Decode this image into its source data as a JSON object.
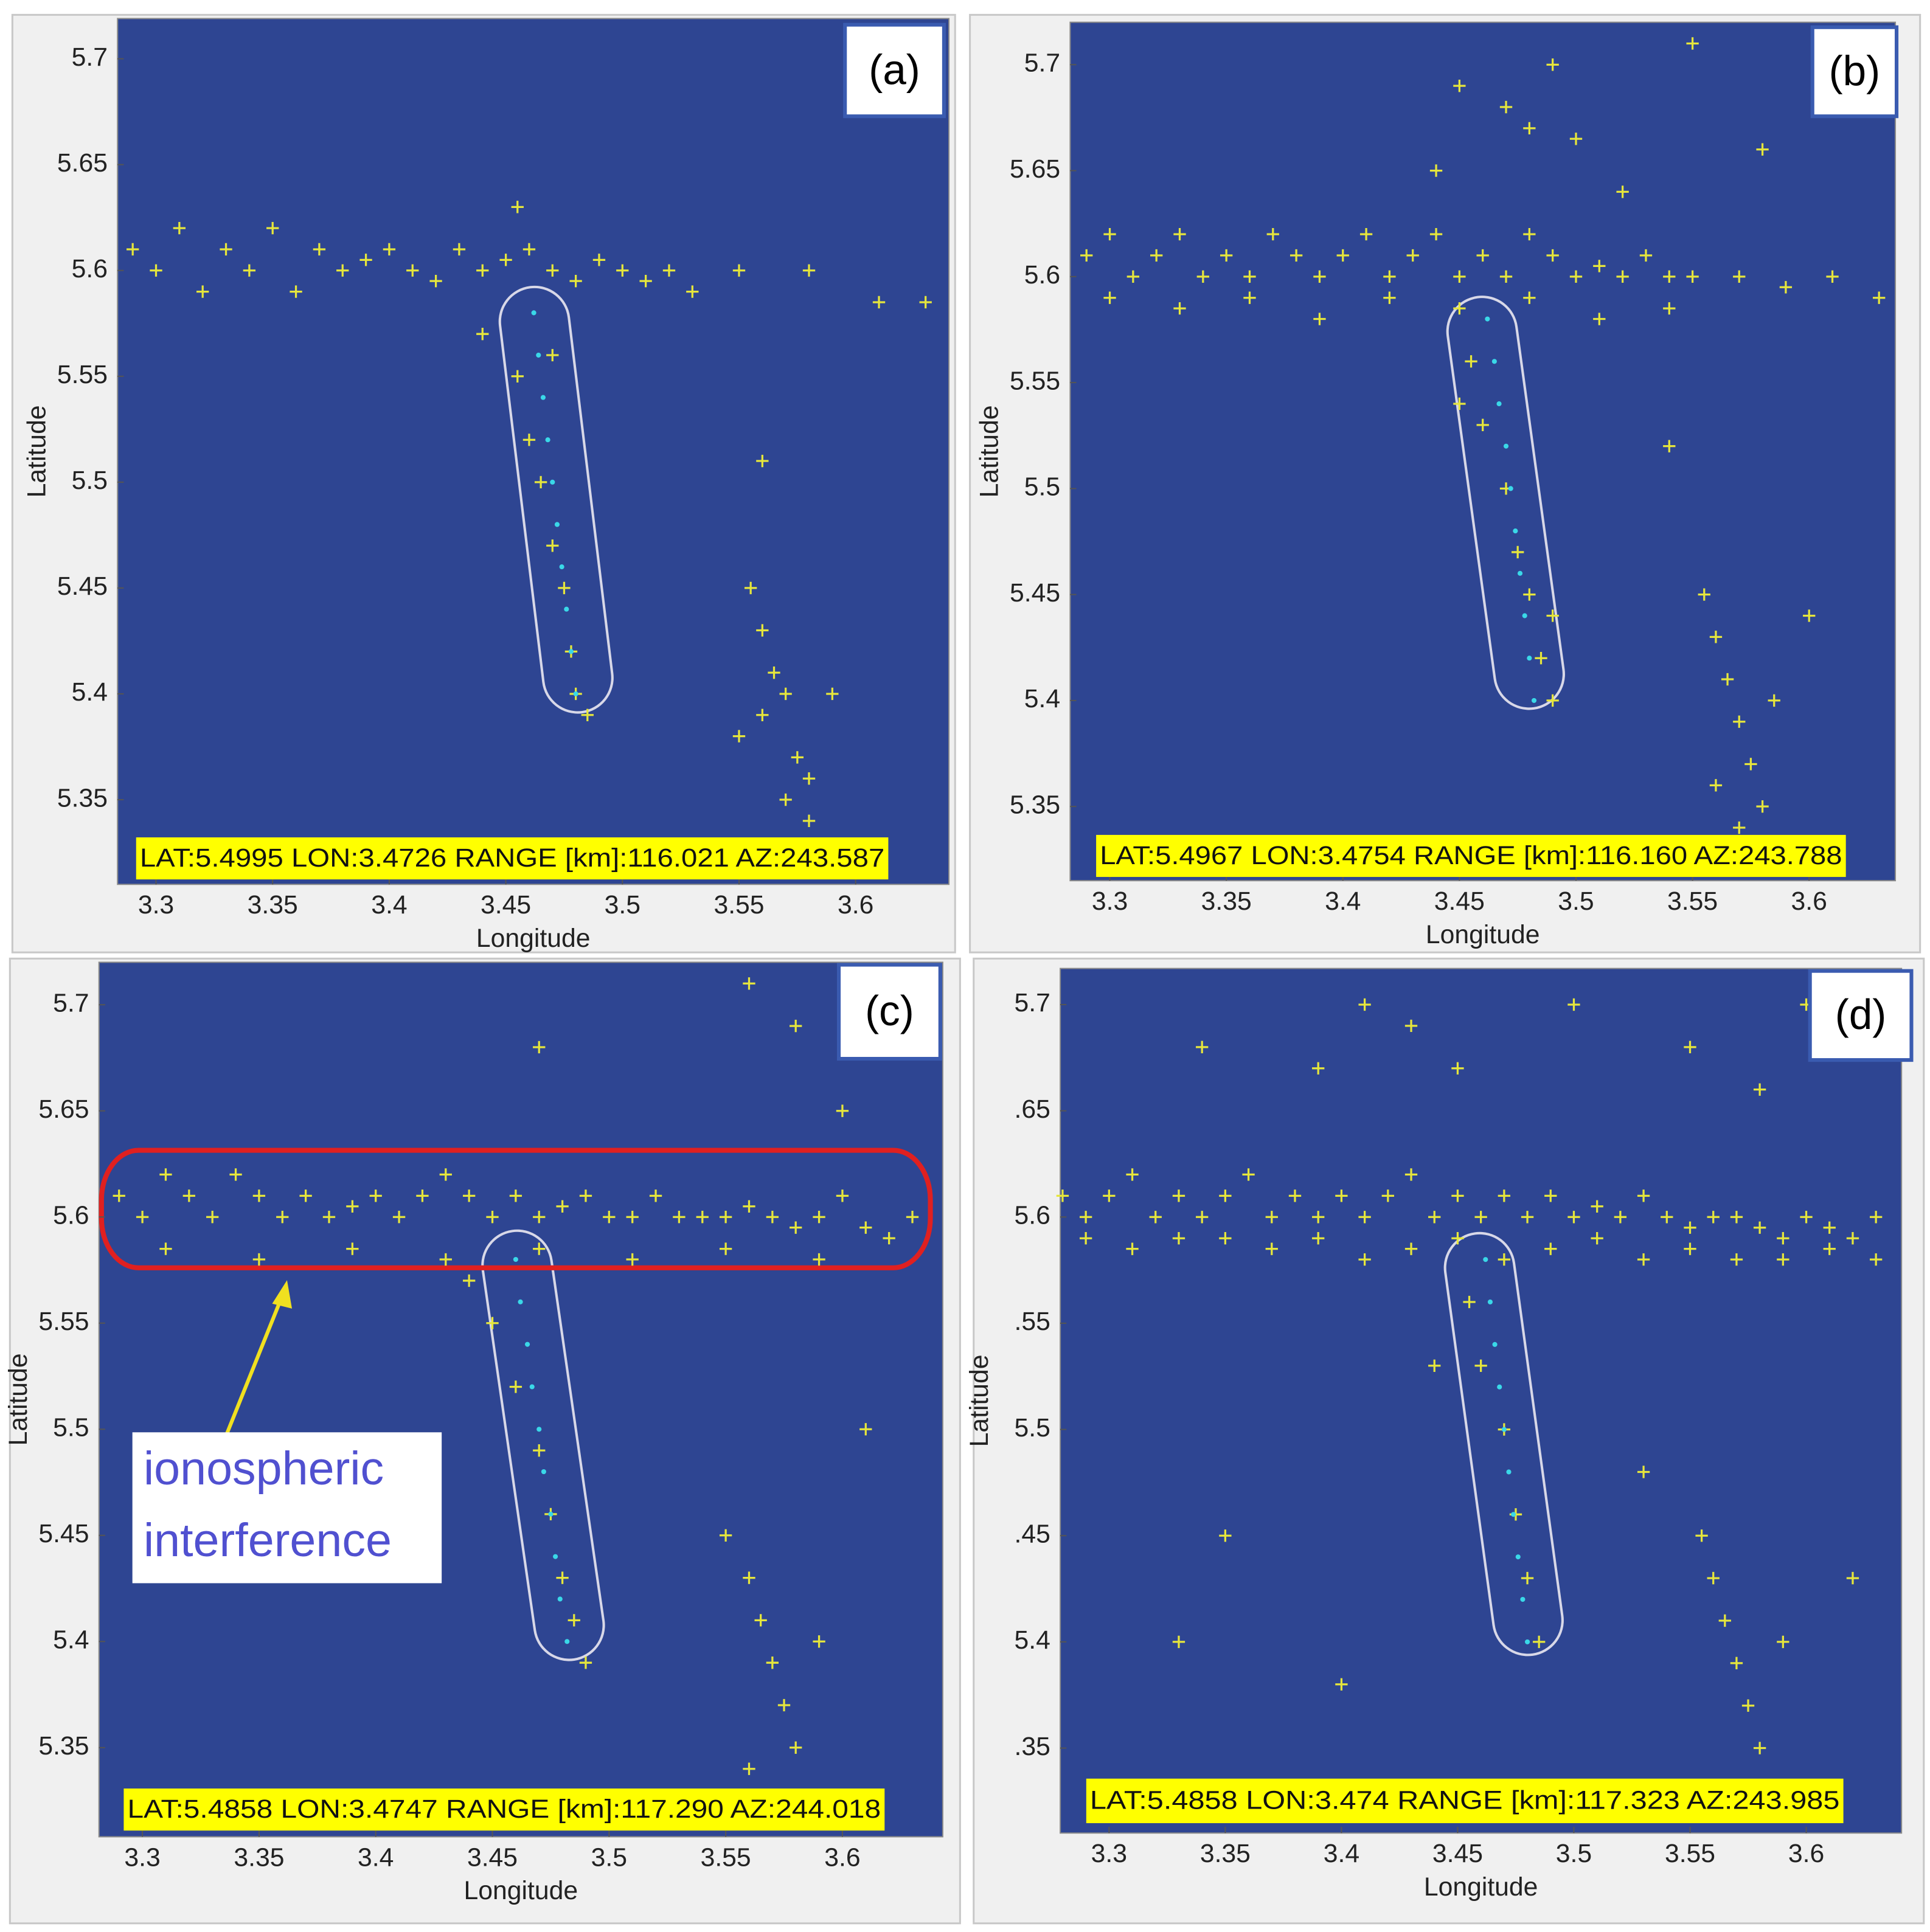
{
  "chart_data": [
    {
      "type": "scatter",
      "label": "(a)",
      "info": "LAT:5.4995 LON:3.4726 RANGE [km]:116.021 AZ:243.587",
      "xlabel": "Longitude",
      "ylabel": "Latitude",
      "xlim": [
        3.2835,
        3.64
      ],
      "ylim": [
        5.31,
        5.719
      ],
      "xticks": [
        3.3,
        3.35,
        3.4,
        3.45,
        3.5,
        3.55,
        3.6
      ],
      "yticks": [
        5.35,
        5.4,
        5.45,
        5.5,
        5.55,
        5.6,
        5.65,
        5.7
      ],
      "background": "#2e4592",
      "series": [
        {
          "color": "#e6e63c",
          "marker": "+",
          "x": [
            3.29,
            3.3,
            3.31,
            3.32,
            3.33,
            3.34,
            3.35,
            3.36,
            3.37,
            3.38,
            3.39,
            3.4,
            3.41,
            3.42,
            3.43,
            3.44,
            3.45,
            3.46,
            3.47,
            3.48,
            3.49,
            3.5,
            3.51,
            3.52,
            3.53,
            3.55,
            3.58,
            3.61,
            3.63,
            3.455,
            3.46,
            3.465,
            3.47,
            3.475,
            3.478,
            3.48,
            3.485,
            3.44,
            3.47,
            3.555,
            3.56,
            3.565,
            3.56,
            3.57,
            3.575,
            3.57,
            3.58,
            3.58,
            3.55,
            3.59,
            3.56,
            3.455
          ],
          "values": [
            5.61,
            5.6,
            5.62,
            5.59,
            5.61,
            5.6,
            5.62,
            5.59,
            5.61,
            5.6,
            5.605,
            5.61,
            5.6,
            5.595,
            5.61,
            5.6,
            5.605,
            5.61,
            5.6,
            5.595,
            5.605,
            5.6,
            5.595,
            5.6,
            5.59,
            5.6,
            5.6,
            5.585,
            5.585,
            5.55,
            5.52,
            5.5,
            5.47,
            5.45,
            5.42,
            5.4,
            5.39,
            5.57,
            5.56,
            5.45,
            5.43,
            5.41,
            5.39,
            5.4,
            5.37,
            5.35,
            5.36,
            5.34,
            5.38,
            5.4,
            5.51,
            5.63
          ]
        },
        {
          "color": "#3ad8e8",
          "marker": "o",
          "x": [
            3.462,
            3.464,
            3.466,
            3.468,
            3.47,
            3.472,
            3.474,
            3.476,
            3.478,
            3.48
          ],
          "values": [
            5.58,
            5.56,
            5.54,
            5.52,
            5.5,
            5.48,
            5.46,
            5.44,
            5.42,
            5.4
          ]
        }
      ]
    },
    {
      "type": "scatter",
      "label": "(b)",
      "info": "LAT:5.4967 LON:3.4754 RANGE [km]:116.160 AZ:243.788",
      "xlabel": "Longitude",
      "ylabel": "Latitude",
      "xlim": [
        3.283,
        3.637
      ],
      "ylim": [
        5.315,
        5.72
      ],
      "xticks": [
        3.3,
        3.35,
        3.4,
        3.45,
        3.5,
        3.55,
        3.6
      ],
      "yticks": [
        5.35,
        5.4,
        5.45,
        5.5,
        5.55,
        5.6,
        5.65,
        5.7
      ],
      "background": "#2e4592",
      "series": [
        {
          "color": "#e6e63c",
          "marker": "+",
          "x": [
            3.29,
            3.3,
            3.31,
            3.32,
            3.33,
            3.34,
            3.35,
            3.36,
            3.37,
            3.38,
            3.39,
            3.4,
            3.41,
            3.42,
            3.43,
            3.44,
            3.45,
            3.46,
            3.47,
            3.48,
            3.49,
            3.5,
            3.51,
            3.52,
            3.53,
            3.54,
            3.55,
            3.57,
            3.59,
            3.61,
            3.63,
            3.3,
            3.33,
            3.36,
            3.39,
            3.42,
            3.45,
            3.48,
            3.51,
            3.54,
            3.47,
            3.48,
            3.5,
            3.49,
            3.45,
            3.44,
            3.52,
            3.55,
            3.58,
            3.455,
            3.46,
            3.47,
            3.475,
            3.48,
            3.485,
            3.49,
            3.45,
            3.49,
            3.555,
            3.56,
            3.565,
            3.57,
            3.575,
            3.58,
            3.57,
            3.56,
            3.585,
            3.6,
            3.54
          ],
          "values": [
            5.61,
            5.62,
            5.6,
            5.61,
            5.62,
            5.6,
            5.61,
            5.6,
            5.62,
            5.61,
            5.6,
            5.61,
            5.62,
            5.6,
            5.61,
            5.62,
            5.6,
            5.61,
            5.6,
            5.62,
            5.61,
            5.6,
            5.605,
            5.6,
            5.61,
            5.6,
            5.6,
            5.6,
            5.595,
            5.6,
            5.59,
            5.59,
            5.585,
            5.59,
            5.58,
            5.59,
            5.585,
            5.59,
            5.58,
            5.585,
            5.68,
            5.67,
            5.665,
            5.7,
            5.69,
            5.65,
            5.64,
            5.71,
            5.66,
            5.56,
            5.53,
            5.5,
            5.47,
            5.45,
            5.42,
            5.4,
            5.54,
            5.44,
            5.45,
            5.43,
            5.41,
            5.39,
            5.37,
            5.35,
            5.34,
            5.36,
            5.4,
            5.44,
            5.52
          ]
        },
        {
          "color": "#3ad8e8",
          "marker": "o",
          "x": [
            3.462,
            3.465,
            3.467,
            3.47,
            3.472,
            3.474,
            3.476,
            3.478,
            3.48,
            3.482
          ],
          "values": [
            5.58,
            5.56,
            5.54,
            5.52,
            5.5,
            5.48,
            5.46,
            5.44,
            5.42,
            5.4
          ]
        }
      ]
    },
    {
      "type": "scatter",
      "label": "(c)",
      "info": "LAT:5.4858 LON:3.4747 RANGE [km]:117.290 AZ:244.018",
      "xlabel": "Longitude",
      "ylabel": "Latitude",
      "xlim": [
        3.2814,
        3.643
      ],
      "ylim": [
        5.308,
        5.72
      ],
      "xticks": [
        3.3,
        3.35,
        3.4,
        3.45,
        3.5,
        3.55,
        3.6
      ],
      "yticks": [
        5.35,
        5.4,
        5.45,
        5.5,
        5.55,
        5.6,
        5.65,
        5.7
      ],
      "background": "#2e4592",
      "annotation": [
        "ionospheric",
        "interference"
      ],
      "series": [
        {
          "color": "#e6e63c",
          "marker": "+",
          "x": [
            3.29,
            3.3,
            3.31,
            3.32,
            3.33,
            3.34,
            3.35,
            3.36,
            3.37,
            3.38,
            3.39,
            3.4,
            3.41,
            3.42,
            3.43,
            3.44,
            3.45,
            3.46,
            3.47,
            3.48,
            3.49,
            3.5,
            3.51,
            3.52,
            3.53,
            3.54,
            3.55,
            3.56,
            3.57,
            3.58,
            3.59,
            3.6,
            3.61,
            3.62,
            3.63,
            3.31,
            3.35,
            3.39,
            3.43,
            3.47,
            3.51,
            3.55,
            3.59,
            3.45,
            3.46,
            3.47,
            3.475,
            3.48,
            3.485,
            3.49,
            3.44,
            3.55,
            3.56,
            3.565,
            3.57,
            3.575,
            3.58,
            3.56,
            3.59,
            3.47,
            3.56,
            3.58,
            3.6,
            3.61
          ],
          "values": [
            5.61,
            5.6,
            5.62,
            5.61,
            5.6,
            5.62,
            5.61,
            5.6,
            5.61,
            5.6,
            5.605,
            5.61,
            5.6,
            5.61,
            5.62,
            5.61,
            5.6,
            5.61,
            5.6,
            5.605,
            5.61,
            5.6,
            5.6,
            5.61,
            5.6,
            5.6,
            5.6,
            5.605,
            5.6,
            5.595,
            5.6,
            5.61,
            5.595,
            5.59,
            5.6,
            5.585,
            5.58,
            5.585,
            5.58,
            5.585,
            5.58,
            5.585,
            5.58,
            5.55,
            5.52,
            5.49,
            5.46,
            5.43,
            5.41,
            5.39,
            5.57,
            5.45,
            5.43,
            5.41,
            5.39,
            5.37,
            5.35,
            5.34,
            5.4,
            5.68,
            5.71,
            5.69,
            5.65,
            5.5
          ]
        },
        {
          "color": "#3ad8e8",
          "marker": "o",
          "x": [
            3.46,
            3.462,
            3.465,
            3.467,
            3.47,
            3.472,
            3.475,
            3.477,
            3.479,
            3.482
          ],
          "values": [
            5.58,
            5.56,
            5.54,
            5.52,
            5.5,
            5.48,
            5.46,
            5.44,
            5.42,
            5.4
          ]
        }
      ]
    },
    {
      "type": "scatter",
      "label": "(d)",
      "info": "LAT:5.4858 LON:3.474 RANGE [km]:117.323 AZ:243.985",
      "xlabel": "Longitude",
      "ylabel": "Latitude",
      "xlim": [
        3.279,
        3.641
      ],
      "ylim": [
        5.31,
        5.717
      ],
      "xticks": [
        3.3,
        3.35,
        3.4,
        3.45,
        3.5,
        3.55,
        3.6
      ],
      "yticks": [
        {
          "value": 5.35,
          "label": ".35"
        },
        5.4,
        {
          "value": 5.45,
          "label": ".45"
        },
        5.5,
        {
          "value": 5.55,
          "label": ".55"
        },
        5.6,
        {
          "value": 5.65,
          "label": ".65"
        },
        5.7
      ],
      "background": "#2e4592",
      "series": [
        {
          "color": "#e6e63c",
          "marker": "+",
          "x": [
            3.28,
            3.29,
            3.3,
            3.31,
            3.32,
            3.33,
            3.34,
            3.35,
            3.36,
            3.37,
            3.38,
            3.39,
            3.4,
            3.41,
            3.42,
            3.43,
            3.44,
            3.45,
            3.46,
            3.47,
            3.48,
            3.49,
            3.5,
            3.51,
            3.52,
            3.53,
            3.54,
            3.55,
            3.56,
            3.57,
            3.58,
            3.59,
            3.6,
            3.61,
            3.62,
            3.63,
            3.29,
            3.31,
            3.33,
            3.35,
            3.37,
            3.39,
            3.41,
            3.43,
            3.45,
            3.47,
            3.49,
            3.51,
            3.53,
            3.55,
            3.57,
            3.59,
            3.61,
            3.63,
            3.34,
            3.39,
            3.41,
            3.43,
            3.45,
            3.5,
            3.55,
            3.58,
            3.6,
            3.455,
            3.46,
            3.47,
            3.475,
            3.48,
            3.485,
            3.44,
            3.555,
            3.56,
            3.565,
            3.57,
            3.575,
            3.58,
            3.59,
            3.33,
            3.4,
            3.53,
            3.62,
            3.35
          ],
          "values": [
            5.61,
            5.6,
            5.61,
            5.62,
            5.6,
            5.61,
            5.6,
            5.61,
            5.62,
            5.6,
            5.61,
            5.6,
            5.61,
            5.6,
            5.61,
            5.62,
            5.6,
            5.61,
            5.6,
            5.61,
            5.6,
            5.61,
            5.6,
            5.605,
            5.6,
            5.61,
            5.6,
            5.595,
            5.6,
            5.6,
            5.595,
            5.59,
            5.6,
            5.595,
            5.59,
            5.6,
            5.59,
            5.585,
            5.59,
            5.59,
            5.585,
            5.59,
            5.58,
            5.585,
            5.59,
            5.58,
            5.585,
            5.59,
            5.58,
            5.585,
            5.58,
            5.58,
            5.585,
            5.58,
            5.68,
            5.67,
            5.7,
            5.69,
            5.67,
            5.7,
            5.68,
            5.66,
            5.7,
            5.56,
            5.53,
            5.5,
            5.46,
            5.43,
            5.4,
            5.53,
            5.45,
            5.43,
            5.41,
            5.39,
            5.37,
            5.35,
            5.4,
            5.4,
            5.38,
            5.48,
            5.43,
            5.45
          ]
        },
        {
          "color": "#3ad8e8",
          "marker": "o",
          "x": [
            3.462,
            3.464,
            3.466,
            3.468,
            3.47,
            3.472,
            3.474,
            3.476,
            3.478,
            3.48
          ],
          "values": [
            5.58,
            5.56,
            5.54,
            5.52,
            5.5,
            5.48,
            5.46,
            5.44,
            5.42,
            5.4
          ]
        }
      ]
    }
  ]
}
